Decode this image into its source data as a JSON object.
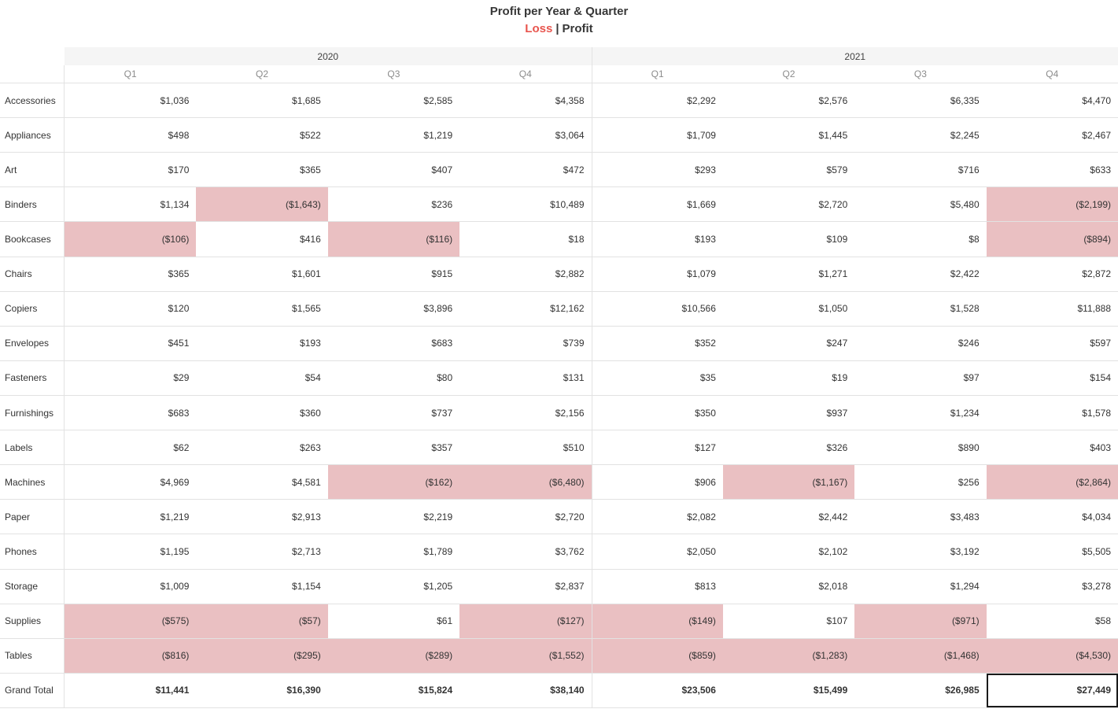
{
  "header": {
    "title": "Profit per Year & Quarter",
    "subtitle_loss": "Loss",
    "subtitle_separator": "|",
    "subtitle_profit": "Profit"
  },
  "colors": {
    "loss_fill": "#eac0c2",
    "loss_label_text": "#e8554e",
    "header_band": "#f5f5f5",
    "grid_line": "#e2e2e2",
    "cell_text": "#333333",
    "quarter_label_text": "#8c8c8c",
    "selection_outline": "#1a1a1a"
  },
  "chart_data": {
    "type": "table",
    "title": "Profit per Year & Quarter",
    "subtitle": "Loss | Profit",
    "value_format": "positive: $#,##0 | negative: ($#,##0), loss cells shaded pink",
    "years": [
      "2020",
      "2021"
    ],
    "quarters": [
      "Q1",
      "Q2",
      "Q3",
      "Q4"
    ],
    "columns": [
      "2020 Q1",
      "2020 Q2",
      "2020 Q3",
      "2020 Q4",
      "2021 Q1",
      "2021 Q2",
      "2021 Q3",
      "2021 Q4"
    ],
    "rows": [
      {
        "label": "Accessories",
        "values": [
          1036,
          1685,
          2585,
          4358,
          2292,
          2576,
          6335,
          4470
        ]
      },
      {
        "label": "Appliances",
        "values": [
          498,
          522,
          1219,
          3064,
          1709,
          1445,
          2245,
          2467
        ]
      },
      {
        "label": "Art",
        "values": [
          170,
          365,
          407,
          472,
          293,
          579,
          716,
          633
        ]
      },
      {
        "label": "Binders",
        "values": [
          1134,
          -1643,
          236,
          10489,
          1669,
          2720,
          5480,
          -2199
        ]
      },
      {
        "label": "Bookcases",
        "values": [
          -106,
          416,
          -116,
          18,
          193,
          109,
          8,
          -894
        ]
      },
      {
        "label": "Chairs",
        "values": [
          365,
          1601,
          915,
          2882,
          1079,
          1271,
          2422,
          2872
        ]
      },
      {
        "label": "Copiers",
        "values": [
          120,
          1565,
          3896,
          12162,
          10566,
          1050,
          1528,
          11888
        ]
      },
      {
        "label": "Envelopes",
        "values": [
          451,
          193,
          683,
          739,
          352,
          247,
          246,
          597
        ]
      },
      {
        "label": "Fasteners",
        "values": [
          29,
          54,
          80,
          131,
          35,
          19,
          97,
          154
        ]
      },
      {
        "label": "Furnishings",
        "values": [
          683,
          360,
          737,
          2156,
          350,
          937,
          1234,
          1578
        ]
      },
      {
        "label": "Labels",
        "values": [
          62,
          263,
          357,
          510,
          127,
          326,
          890,
          403
        ]
      },
      {
        "label": "Machines",
        "values": [
          4969,
          4581,
          -162,
          -6480,
          906,
          -1167,
          256,
          -2864
        ]
      },
      {
        "label": "Paper",
        "values": [
          1219,
          2913,
          2219,
          2720,
          2082,
          2442,
          3483,
          4034
        ]
      },
      {
        "label": "Phones",
        "values": [
          1195,
          2713,
          1789,
          3762,
          2050,
          2102,
          3192,
          5505
        ]
      },
      {
        "label": "Storage",
        "values": [
          1009,
          1154,
          1205,
          2837,
          813,
          2018,
          1294,
          3278
        ]
      },
      {
        "label": "Supplies",
        "values": [
          -575,
          -57,
          61,
          -127,
          -149,
          107,
          -971,
          58
        ]
      },
      {
        "label": "Tables",
        "values": [
          -816,
          -295,
          -289,
          -1552,
          -859,
          -1283,
          -1468,
          -4530
        ]
      },
      {
        "label": "Grand Total",
        "values": [
          11441,
          16390,
          15824,
          38140,
          23506,
          15499,
          26985,
          27449
        ],
        "is_grand_total": true
      }
    ],
    "selected_cell": {
      "row": "Grand Total",
      "column": "2021 Q4"
    },
    "legend_position": "subtitle",
    "grid": true
  }
}
